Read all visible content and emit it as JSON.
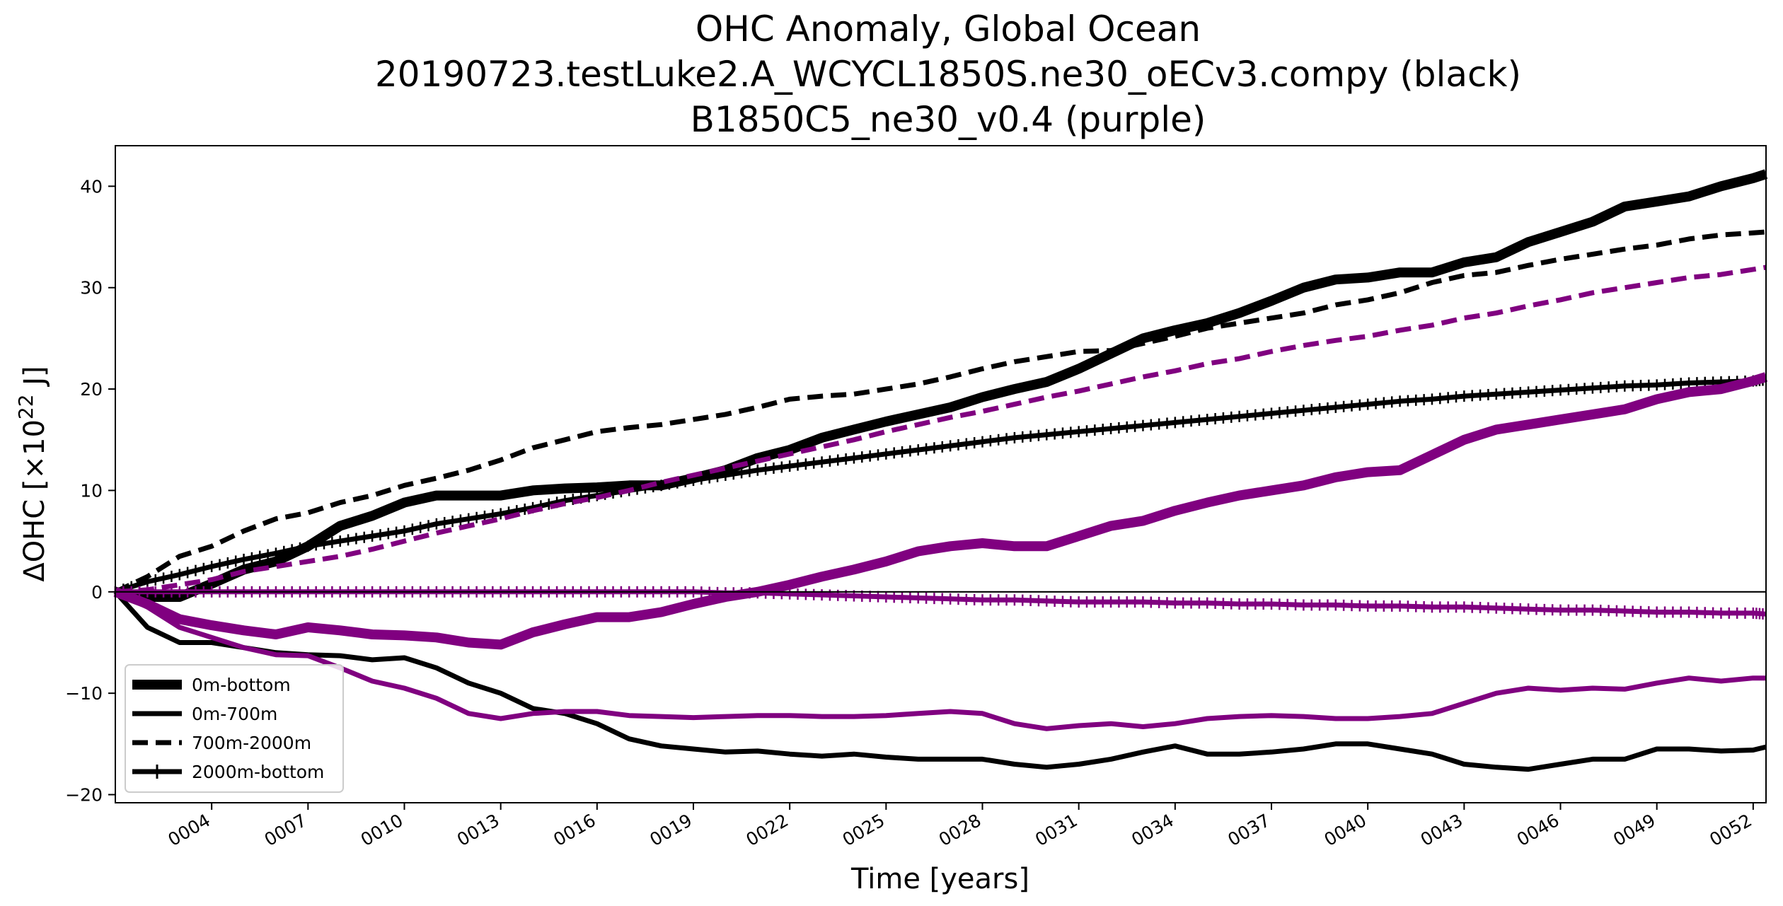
{
  "chart_data": {
    "type": "line",
    "title": [
      "OHC Anomaly, Global Ocean",
      "20190723.testLuke2.A_WCYCL1850S.ne30_oECv3.compy (black)",
      "B1850C5_ne30_v0.4 (purple)"
    ],
    "xlabel": "Time [years]",
    "ylabel_main": "ΔOHC [×10",
    "ylabel_sup": "22",
    "ylabel_unit": " J]",
    "xlim": [
      1,
      52.4
    ],
    "ylim": [
      -20.8,
      44
    ],
    "xticks": [
      4,
      7,
      10,
      13,
      16,
      19,
      22,
      25,
      28,
      31,
      34,
      37,
      40,
      43,
      46,
      49,
      52
    ],
    "xtick_labels": [
      "0004",
      "0007",
      "0010",
      "0013",
      "0016",
      "0019",
      "0022",
      "0025",
      "0028",
      "0031",
      "0034",
      "0037",
      "0040",
      "0043",
      "0046",
      "0049",
      "0052"
    ],
    "yticks": [
      -20,
      -10,
      0,
      10,
      20,
      30,
      40
    ],
    "ytick_labels": [
      "−20",
      "−10",
      "0",
      "10",
      "20",
      "30",
      "40"
    ],
    "zero_line": true,
    "grid": false,
    "colors": {
      "black": "#000000",
      "purple": "#800080"
    },
    "legend": {
      "placement": "lower-left",
      "entries": [
        {
          "label": "0m-bottom",
          "style": "thick"
        },
        {
          "label": "0m-700m",
          "style": "solid"
        },
        {
          "label": "700m-2000m",
          "style": "dashed"
        },
        {
          "label": "2000m-bottom",
          "style": "plus"
        }
      ]
    },
    "series": [
      {
        "run": "black",
        "layer": "0m-bottom",
        "color": "#000000",
        "style": "thick",
        "x": [
          1,
          2,
          3,
          4,
          5,
          6,
          7,
          8,
          9,
          10,
          11,
          12,
          13,
          14,
          15,
          16,
          17,
          18,
          19,
          20,
          21,
          22,
          23,
          24,
          25,
          26,
          27,
          28,
          29,
          30,
          31,
          32,
          33,
          34,
          35,
          36,
          37,
          38,
          39,
          40,
          41,
          42,
          43,
          44,
          45,
          46,
          47,
          48,
          49,
          50,
          51,
          52,
          52.4
        ],
        "y": [
          0,
          -0.5,
          -0.5,
          0.8,
          2.2,
          3,
          4.5,
          6.5,
          7.5,
          8.8,
          9.5,
          9.5,
          9.5,
          10,
          10.2,
          10.3,
          10.5,
          10.5,
          11.2,
          12,
          13.2,
          14,
          15.2,
          16,
          16.8,
          17.5,
          18.2,
          19.2,
          20,
          20.7,
          22,
          23.5,
          25,
          25.8,
          26.5,
          27.5,
          28.7,
          30,
          30.8,
          31,
          31.5,
          31.5,
          32.5,
          33,
          34.5,
          35.5,
          36.5,
          38,
          38.5,
          39,
          40,
          40.8,
          41.2
        ]
      },
      {
        "run": "black",
        "layer": "0m-700m",
        "color": "#000000",
        "style": "solid",
        "x": [
          1,
          2,
          3,
          4,
          5,
          6,
          7,
          8,
          9,
          10,
          11,
          12,
          13,
          14,
          15,
          16,
          17,
          18,
          19,
          20,
          21,
          22,
          23,
          24,
          25,
          26,
          27,
          28,
          29,
          30,
          31,
          32,
          33,
          34,
          35,
          36,
          37,
          38,
          39,
          40,
          41,
          42,
          43,
          44,
          45,
          46,
          47,
          48,
          49,
          50,
          51,
          52,
          52.4
        ],
        "y": [
          0,
          -3.5,
          -5,
          -5,
          -5.5,
          -6,
          -6.2,
          -6.3,
          -6.7,
          -6.5,
          -7.5,
          -9,
          -10,
          -11.5,
          -12,
          -13,
          -14.5,
          -15.2,
          -15.5,
          -15.8,
          -15.7,
          -16,
          -16.2,
          -16,
          -16.3,
          -16.5,
          -16.5,
          -16.5,
          -17,
          -17.3,
          -17,
          -16.5,
          -15.8,
          -15.2,
          -16,
          -16,
          -15.8,
          -15.5,
          -15,
          -15,
          -15.5,
          -16,
          -17,
          -17.3,
          -17.5,
          -17,
          -16.5,
          -16.5,
          -15.5,
          -15.5,
          -15.7,
          -15.6,
          -15.3
        ]
      },
      {
        "run": "black",
        "layer": "700m-2000m",
        "color": "#000000",
        "style": "dashed",
        "x": [
          1,
          2,
          3,
          4,
          5,
          6,
          7,
          8,
          9,
          10,
          11,
          12,
          13,
          14,
          15,
          16,
          17,
          18,
          19,
          20,
          21,
          22,
          23,
          24,
          25,
          26,
          27,
          28,
          29,
          30,
          31,
          32,
          33,
          34,
          35,
          36,
          37,
          38,
          39,
          40,
          41,
          42,
          43,
          44,
          45,
          46,
          47,
          48,
          49,
          50,
          51,
          52,
          52.4
        ],
        "y": [
          0,
          1.5,
          3.5,
          4.5,
          6,
          7.2,
          7.8,
          8.8,
          9.5,
          10.5,
          11.2,
          12,
          13,
          14.2,
          15,
          15.8,
          16.2,
          16.5,
          17,
          17.5,
          18.2,
          19,
          19.3,
          19.5,
          20,
          20.5,
          21.2,
          22,
          22.7,
          23.2,
          23.7,
          23.8,
          24.5,
          25.2,
          26,
          26.5,
          27,
          27.5,
          28.3,
          28.8,
          29.5,
          30.5,
          31.2,
          31.5,
          32.2,
          32.8,
          33.3,
          33.8,
          34.2,
          34.8,
          35.2,
          35.4,
          35.5
        ]
      },
      {
        "run": "black",
        "layer": "2000m-bottom",
        "color": "#000000",
        "style": "plus",
        "x": [
          1,
          2,
          3,
          4,
          5,
          6,
          7,
          8,
          9,
          10,
          11,
          12,
          13,
          14,
          15,
          16,
          17,
          18,
          19,
          20,
          21,
          22,
          23,
          24,
          25,
          26,
          27,
          28,
          29,
          30,
          31,
          32,
          33,
          34,
          35,
          36,
          37,
          38,
          39,
          40,
          41,
          42,
          43,
          44,
          45,
          46,
          47,
          48,
          49,
          50,
          51,
          52,
          52.4
        ],
        "y": [
          0,
          1,
          1.7,
          2.5,
          3.2,
          3.8,
          4.5,
          5,
          5.5,
          6,
          6.7,
          7.2,
          7.7,
          8.3,
          9,
          9.5,
          10,
          10.5,
          11,
          11.5,
          12,
          12.4,
          12.8,
          13.2,
          13.6,
          14,
          14.4,
          14.8,
          15.2,
          15.5,
          15.8,
          16.1,
          16.4,
          16.7,
          17,
          17.3,
          17.6,
          17.9,
          18.2,
          18.5,
          18.8,
          19,
          19.3,
          19.5,
          19.7,
          19.9,
          20.1,
          20.3,
          20.4,
          20.6,
          20.7,
          20.8,
          20.9
        ]
      },
      {
        "run": "purple",
        "layer": "0m-bottom",
        "color": "#800080",
        "style": "thick",
        "x": [
          1,
          2,
          3,
          4,
          5,
          6,
          7,
          8,
          9,
          10,
          11,
          12,
          13,
          14,
          15,
          16,
          17,
          18,
          19,
          20,
          21,
          22,
          23,
          24,
          25,
          26,
          27,
          28,
          29,
          30,
          31,
          32,
          33,
          34,
          35,
          36,
          37,
          38,
          39,
          40,
          41,
          42,
          43,
          44,
          45,
          46,
          47,
          48,
          49,
          50,
          51,
          52,
          52.4
        ],
        "y": [
          0,
          -1.2,
          -2.7,
          -3.3,
          -3.8,
          -4.2,
          -3.5,
          -3.8,
          -4.2,
          -4.3,
          -4.5,
          -5,
          -5.2,
          -4,
          -3.2,
          -2.5,
          -2.5,
          -2,
          -1.2,
          -0.5,
          0,
          0.7,
          1.5,
          2.2,
          3,
          4,
          4.5,
          4.8,
          4.5,
          4.5,
          5.5,
          6.5,
          7,
          8,
          8.8,
          9.5,
          10,
          10.5,
          11.3,
          11.8,
          12,
          13.5,
          15,
          16,
          16.5,
          17,
          17.5,
          18,
          19,
          19.7,
          20,
          20.8,
          21.2
        ]
      },
      {
        "run": "purple",
        "layer": "0m-700m",
        "color": "#800080",
        "style": "solid",
        "x": [
          1,
          2,
          3,
          4,
          5,
          6,
          7,
          8,
          9,
          10,
          11,
          12,
          13,
          14,
          15,
          16,
          17,
          18,
          19,
          20,
          21,
          22,
          23,
          24,
          25,
          26,
          27,
          28,
          29,
          30,
          31,
          32,
          33,
          34,
          35,
          36,
          37,
          38,
          39,
          40,
          41,
          42,
          43,
          44,
          45,
          46,
          47,
          48,
          49,
          50,
          51,
          52,
          52.4
        ],
        "y": [
          0,
          -1.5,
          -3.5,
          -4.5,
          -5.5,
          -6.2,
          -6.3,
          -7.5,
          -8.8,
          -9.5,
          -10.5,
          -12,
          -12.5,
          -12,
          -11.8,
          -11.8,
          -12.2,
          -12.3,
          -12.4,
          -12.3,
          -12.2,
          -12.2,
          -12.3,
          -12.3,
          -12.2,
          -12,
          -11.8,
          -12,
          -13,
          -13.5,
          -13.2,
          -13,
          -13.3,
          -13,
          -12.5,
          -12.3,
          -12.2,
          -12.3,
          -12.5,
          -12.5,
          -12.3,
          -12,
          -11,
          -10,
          -9.5,
          -9.7,
          -9.5,
          -9.6,
          -9,
          -8.5,
          -8.8,
          -8.5,
          -8.5
        ]
      },
      {
        "run": "purple",
        "layer": "700m-2000m",
        "color": "#800080",
        "style": "dashed",
        "x": [
          1,
          2,
          3,
          4,
          5,
          6,
          7,
          8,
          9,
          10,
          11,
          12,
          13,
          14,
          15,
          16,
          17,
          18,
          19,
          20,
          21,
          22,
          23,
          24,
          25,
          26,
          27,
          28,
          29,
          30,
          31,
          32,
          33,
          34,
          35,
          36,
          37,
          38,
          39,
          40,
          41,
          42,
          43,
          44,
          45,
          46,
          47,
          48,
          49,
          50,
          51,
          52,
          52.4
        ],
        "y": [
          0,
          0.2,
          0.7,
          1.2,
          2,
          2.5,
          3,
          3.5,
          4.2,
          5,
          5.8,
          6.5,
          7.2,
          8,
          8.7,
          9.3,
          10,
          10.8,
          11.5,
          12.2,
          12.9,
          13.6,
          14.3,
          15,
          15.8,
          16.5,
          17.2,
          17.8,
          18.5,
          19.2,
          19.8,
          20.5,
          21.2,
          21.8,
          22.5,
          23,
          23.7,
          24.3,
          24.8,
          25.2,
          25.8,
          26.3,
          27,
          27.5,
          28.2,
          28.8,
          29.5,
          30,
          30.5,
          31,
          31.3,
          31.8,
          32
        ]
      },
      {
        "run": "purple",
        "layer": "2000m-bottom",
        "color": "#800080",
        "style": "plus",
        "x": [
          1,
          2,
          3,
          4,
          5,
          6,
          7,
          8,
          9,
          10,
          11,
          12,
          13,
          14,
          15,
          16,
          17,
          18,
          19,
          20,
          21,
          22,
          23,
          24,
          25,
          26,
          27,
          28,
          29,
          30,
          31,
          32,
          33,
          34,
          35,
          36,
          37,
          38,
          39,
          40,
          41,
          42,
          43,
          44,
          45,
          46,
          47,
          48,
          49,
          50,
          51,
          52,
          52.4
        ],
        "y": [
          0,
          0,
          0,
          0,
          0,
          0,
          0,
          0,
          0,
          0,
          0,
          0,
          0,
          0,
          0,
          0,
          0,
          0,
          0,
          -0.1,
          -0.1,
          -0.2,
          -0.3,
          -0.4,
          -0.5,
          -0.6,
          -0.7,
          -0.8,
          -0.8,
          -0.9,
          -1,
          -1,
          -1,
          -1.1,
          -1.1,
          -1.2,
          -1.2,
          -1.3,
          -1.3,
          -1.4,
          -1.4,
          -1.5,
          -1.5,
          -1.6,
          -1.7,
          -1.8,
          -1.8,
          -1.9,
          -2,
          -2,
          -2.1,
          -2.1,
          -2.2
        ]
      }
    ]
  }
}
